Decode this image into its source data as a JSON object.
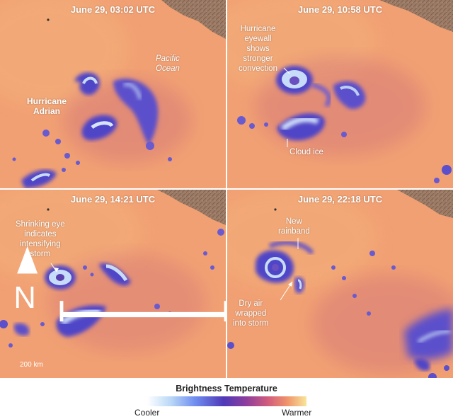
{
  "panels": [
    {
      "timestamp": "June 29, 03:02 UTC",
      "labels": {
        "hurricane": "Hurricane\nAdrian",
        "ocean": "Pacific\nOcean"
      }
    },
    {
      "timestamp": "June 29, 10:58 UTC",
      "labels": {
        "eyewall": "Hurricane\neyewall\nshows\nstronger\nconvection",
        "cloud_ice": "Cloud ice"
      }
    },
    {
      "timestamp": "June 29, 14:21 UTC",
      "labels": {
        "eye": "Shrinking eye\nindicates\nintensifying\nstorm"
      },
      "scale_label": "200 km"
    },
    {
      "timestamp": "June 29, 22:18 UTC",
      "labels": {
        "rainband": "New\nrainband",
        "dry_air": "Dry air\nwrapped\ninto storm"
      }
    }
  ],
  "legend": {
    "title": "Brightness Temperature",
    "low_label": "Cooler",
    "high_label": "Warmer",
    "gradient_colors": [
      "#ffffff",
      "#b9d7f6",
      "#6f8ef0",
      "#4f39b8",
      "#8d3d9d",
      "#d25c7d",
      "#f0946b",
      "#f8e69a"
    ]
  },
  "colors": {
    "background": "#f1a073",
    "land": "#9c7c66",
    "cloud_core": "#5045c7",
    "cloud_ice": "#c7dcf8"
  },
  "icons": {
    "north": "north-arrow-icon"
  }
}
